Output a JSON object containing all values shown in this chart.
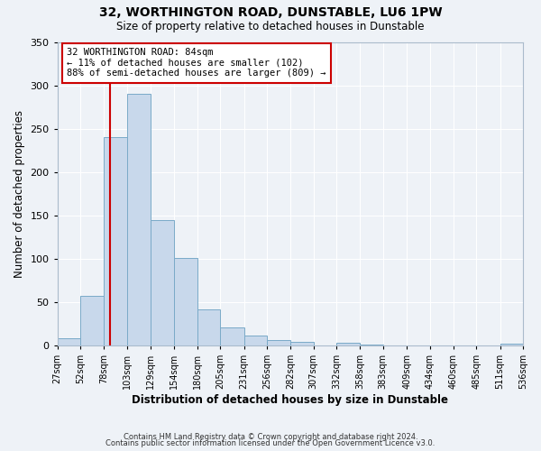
{
  "title": "32, WORTHINGTON ROAD, DUNSTABLE, LU6 1PW",
  "subtitle": "Size of property relative to detached houses in Dunstable",
  "xlabel": "Distribution of detached houses by size in Dunstable",
  "ylabel": "Number of detached properties",
  "bar_color": "#c8d8eb",
  "bar_edge_color": "#7aaac8",
  "background_color": "#eef2f7",
  "grid_color": "#ffffff",
  "bin_edges": [
    27,
    52,
    78,
    103,
    129,
    154,
    180,
    205,
    231,
    256,
    282,
    307,
    332,
    358,
    383,
    409,
    434,
    460,
    485,
    511,
    536
  ],
  "bin_counts": [
    8,
    57,
    240,
    290,
    145,
    101,
    42,
    21,
    11,
    6,
    4,
    0,
    3,
    1,
    0,
    0,
    0,
    0,
    0,
    2
  ],
  "property_size": 84,
  "vline_color": "#cc0000",
  "annotation_line1": "32 WORTHINGTON ROAD: 84sqm",
  "annotation_line2": "← 11% of detached houses are smaller (102)",
  "annotation_line3": "88% of semi-detached houses are larger (809) →",
  "annotation_box_color": "#ffffff",
  "annotation_box_edge_color": "#cc0000",
  "ylim": [
    0,
    350
  ],
  "yticks": [
    0,
    50,
    100,
    150,
    200,
    250,
    300,
    350
  ],
  "footnote1": "Contains HM Land Registry data © Crown copyright and database right 2024.",
  "footnote2": "Contains public sector information licensed under the Open Government Licence v3.0."
}
